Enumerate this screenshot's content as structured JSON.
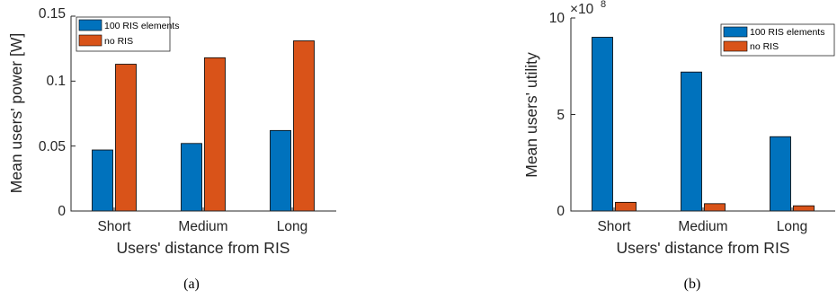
{
  "chart_data": [
    {
      "type": "bar",
      "categories": [
        "Short",
        "Medium",
        "Long"
      ],
      "series": [
        {
          "name": "100 RIS elements",
          "color": "#0072BD",
          "values": [
            0.047,
            0.052,
            0.062
          ]
        },
        {
          "name": "no RIS",
          "color": "#D95319",
          "values": [
            0.113,
            0.118,
            0.131
          ]
        }
      ],
      "xlabel": "Users' distance from RIS",
      "ylabel": "Mean users' power [W]",
      "ylim": [
        0,
        0.15
      ],
      "yticks": [
        "0",
        "0.05",
        "0.1",
        "0.15"
      ],
      "grid": false,
      "legend_position": "top-left",
      "caption": "(a)"
    },
    {
      "type": "bar",
      "categories": [
        "Short",
        "Medium",
        "Long"
      ],
      "series": [
        {
          "name": "100 RIS elements",
          "color": "#0072BD",
          "values": [
            9.0,
            7.2,
            3.85
          ]
        },
        {
          "name": "no RIS",
          "color": "#D95319",
          "values": [
            0.45,
            0.38,
            0.27
          ]
        }
      ],
      "xlabel": "Users' distance from RIS",
      "ylabel": "Mean users' utility",
      "ylim": [
        0,
        10
      ],
      "yticks": [
        "0",
        "5",
        "10"
      ],
      "y_exponent_base": "×10",
      "y_exponent": "8",
      "grid": false,
      "legend_position": "top-right",
      "caption": "(b)"
    }
  ]
}
